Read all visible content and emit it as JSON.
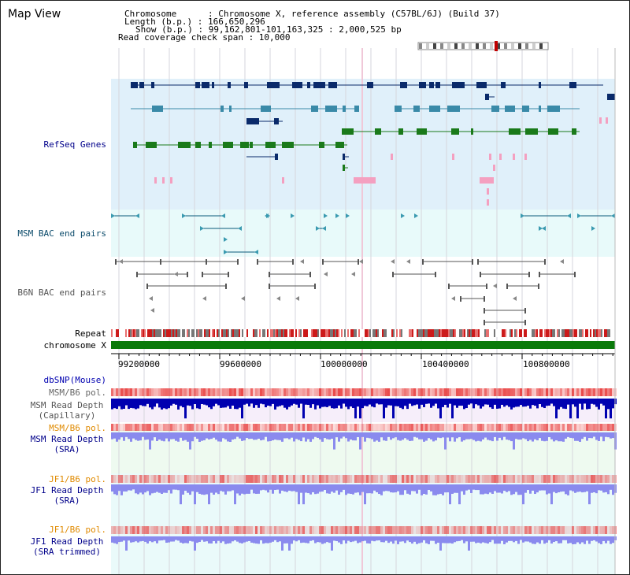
{
  "title": "Map View",
  "info": {
    "lines": [
      "Chromosome      : Chromosome X, reference assembly (C57BL/6J) (Build 37)",
      "Length (b.p.) : 166,650,296",
      "Show (b.p.) : 99,162,801-101,163,325 : 2,000,525 bp",
      "Read coverage check span : 10,000"
    ]
  },
  "tracks": {
    "refseq": "RefSeq Genes",
    "msm_bac": "MSM BAC end pairs",
    "b6n_bac": "B6N BAC end pairs",
    "repeat": "Repeat",
    "chromosome": "chromosome X",
    "dbsnp": "dbSNP(Mouse)",
    "msm_pol": "MSM/B6 pol.",
    "msm_depth_cap": [
      "MSM Read Depth",
      "(Capillary)"
    ],
    "msm_pol2": "MSM/B6 pol.",
    "msm_depth_sra": [
      "MSM Read Depth",
      "(SRA)"
    ],
    "jf1_pol": "JF1/B6 pol.",
    "jf1_depth_sra": [
      "JF1 Read Depth",
      "(SRA)"
    ],
    "jf1_pol2": "JF1/B6 pol.",
    "jf1_depth_trim": [
      "JF1 Read Depth",
      "(SRA trimmed)"
    ]
  },
  "axis": {
    "ticks": [
      "99200000",
      "99600000",
      "100000000",
      "100400000",
      "100800000"
    ]
  },
  "colors": {
    "refseq_bg": "#e0f0fa",
    "bac_bg": "#e8fafa",
    "gene_dark": "#0a2a6a",
    "gene_mid": "#3a8aa8",
    "gene_green": "#1a7a1a",
    "pink": "#f4a0c0",
    "chromosome": "#0a7a0a",
    "snp_blue": "#0000b0",
    "pol_label": "#e08a00",
    "depth_blue": "#1a1ae0",
    "depth_light": "#8a8aee"
  }
}
